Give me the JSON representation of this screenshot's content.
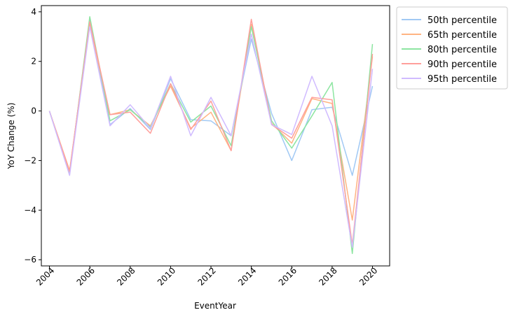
{
  "chart_data": {
    "type": "line",
    "title": "",
    "xlabel": "EventYear",
    "ylabel": "YoY Change (%)",
    "x": [
      2004,
      2005,
      2006,
      2007,
      2008,
      2009,
      2010,
      2011,
      2012,
      2013,
      2014,
      2015,
      2016,
      2017,
      2018,
      2019,
      2020
    ],
    "xlim": [
      2003.6,
      2020.85
    ],
    "ylim": [
      -6.25,
      4.25
    ],
    "x_ticks": [
      2004,
      2006,
      2008,
      2010,
      2012,
      2014,
      2016,
      2018,
      2020
    ],
    "y_ticks": [
      -6,
      -4,
      -2,
      0,
      2,
      4
    ],
    "x_tick_labels": [
      "2004",
      "2006",
      "2008",
      "2010",
      "2012",
      "2014",
      "2016",
      "2018",
      "2020"
    ],
    "y_tick_labels": [
      "−6",
      "−4",
      "−2",
      "0",
      "2",
      "4"
    ],
    "grid": false,
    "legend_position": "outside-right-top",
    "series": [
      {
        "name": "50th percentile",
        "color": "#a1c9f4",
        "values": [
          0,
          -2.5,
          3.7,
          -0.55,
          0.1,
          -0.75,
          1.3,
          -0.35,
          -0.4,
          -1.0,
          2.9,
          -0.1,
          -2.0,
          0.05,
          0.15,
          -2.6,
          1.0
        ]
      },
      {
        "name": "65th percentile",
        "color": "#ffb482",
        "values": [
          0,
          -2.4,
          3.45,
          -0.15,
          0.05,
          -0.6,
          1.0,
          -0.7,
          -0.05,
          -1.6,
          3.5,
          -0.5,
          -1.3,
          0.5,
          0.3,
          -4.4,
          2.2
        ]
      },
      {
        "name": "80th percentile",
        "color": "#8de5a1",
        "values": [
          0,
          -2.55,
          3.8,
          -0.4,
          0.05,
          -0.65,
          1.1,
          -0.45,
          0.2,
          -1.4,
          3.4,
          -0.4,
          -1.5,
          -0.2,
          1.15,
          -5.75,
          2.7
        ]
      },
      {
        "name": "90th percentile",
        "color": "#ff9f9b",
        "values": [
          0,
          -2.45,
          3.6,
          -0.15,
          -0.05,
          -0.9,
          1.1,
          -0.75,
          0.4,
          -1.6,
          3.7,
          -0.55,
          -1.1,
          0.55,
          0.45,
          -5.4,
          2.3
        ]
      },
      {
        "name": "95th percentile",
        "color": "#d0bbff",
        "values": [
          0,
          -2.6,
          3.4,
          -0.6,
          0.25,
          -0.7,
          1.4,
          -1.0,
          0.55,
          -1.0,
          3.1,
          -0.55,
          -0.95,
          1.4,
          -0.6,
          -5.5,
          1.7
        ]
      }
    ]
  }
}
